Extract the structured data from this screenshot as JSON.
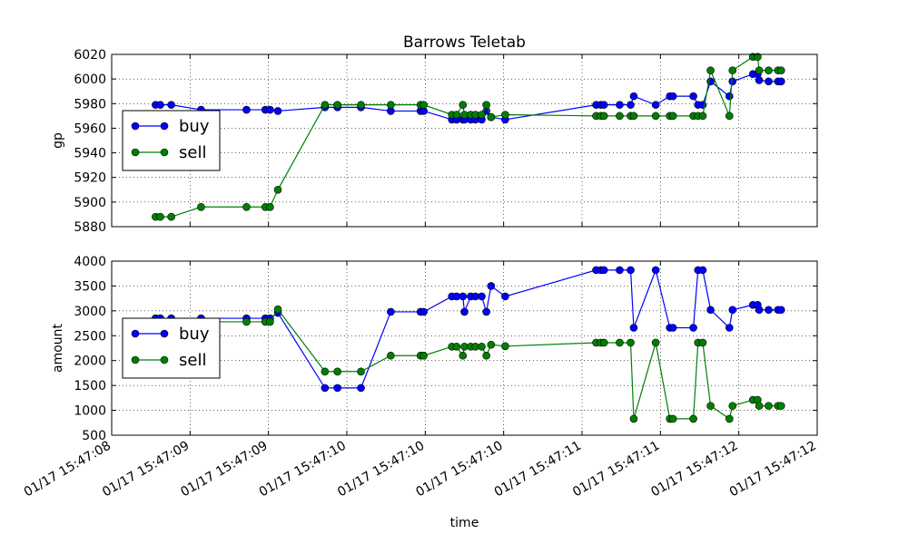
{
  "chart_data": [
    {
      "type": "line",
      "title": "Barrows Teletab",
      "ylabel": "gp",
      "x": [
        8.28,
        8.31,
        8.38,
        8.57,
        8.86,
        8.98,
        9.01,
        9.06,
        9.36,
        9.44,
        9.59,
        9.78,
        9.97,
        9.99,
        10.17,
        10.2,
        10.24,
        10.25,
        10.29,
        10.32,
        10.36,
        10.39,
        10.42,
        10.51,
        11.09,
        11.12,
        11.14,
        11.24,
        11.31,
        11.33,
        11.47,
        11.56,
        11.58,
        11.71,
        11.74,
        11.77,
        11.82,
        11.94,
        11.96,
        12.09,
        12.12,
        12.13,
        12.19,
        12.25,
        12.27
      ],
      "series": [
        {
          "name": "buy",
          "color": "#0000ff",
          "values": [
            5979,
            5979,
            5979,
            5975,
            5975,
            5975,
            5975,
            5974,
            5977,
            5977,
            5977,
            5974,
            5974,
            5974,
            5967,
            5967,
            5967,
            5967,
            5967,
            5967,
            5967,
            5974,
            5969,
            5967,
            5979,
            5979,
            5979,
            5979,
            5979,
            5986,
            5979,
            5986,
            5986,
            5986,
            5979,
            5979,
            5998,
            5986,
            5998,
            6004,
            6004,
            5999,
            5998,
            5998,
            5998
          ]
        },
        {
          "name": "sell",
          "color": "#008000",
          "values": [
            5888,
            5888,
            5888,
            5896,
            5896,
            5896,
            5896,
            5910,
            5979,
            5979,
            5979,
            5979,
            5979,
            5979,
            5971,
            5971,
            5979,
            5971,
            5971,
            5971,
            5971,
            5979,
            5969,
            5971,
            5970,
            5970,
            5970,
            5970,
            5970,
            5970,
            5970,
            5970,
            5970,
            5970,
            5970,
            5970,
            6007,
            5970,
            6007,
            6018,
            6018,
            6007,
            6007,
            6007,
            6007
          ]
        }
      ],
      "xlim": [
        8.0,
        12.5
      ],
      "xticks": [
        8.0,
        8.5,
        9.0,
        9.5,
        10.0,
        10.5,
        11.0,
        11.5,
        12.0,
        12.5
      ],
      "ylim": [
        5880,
        6020
      ],
      "yticks": [
        5880,
        5900,
        5920,
        5940,
        5960,
        5980,
        6000,
        6020
      ],
      "grid": true,
      "legend": "center left"
    },
    {
      "type": "line",
      "ylabel": "amount",
      "xlabel": "time",
      "x": [
        8.28,
        8.31,
        8.38,
        8.57,
        8.86,
        8.98,
        9.01,
        9.06,
        9.36,
        9.44,
        9.59,
        9.78,
        9.97,
        9.99,
        10.17,
        10.2,
        10.24,
        10.25,
        10.29,
        10.32,
        10.36,
        10.39,
        10.42,
        10.51,
        11.09,
        11.12,
        11.14,
        11.24,
        11.31,
        11.33,
        11.47,
        11.56,
        11.58,
        11.71,
        11.74,
        11.77,
        11.82,
        11.94,
        11.96,
        12.09,
        12.12,
        12.13,
        12.19,
        12.25,
        12.27
      ],
      "series": [
        {
          "name": "buy",
          "color": "#0000ff",
          "values": [
            2850,
            2850,
            2850,
            2850,
            2850,
            2850,
            2850,
            2960,
            1450,
            1450,
            1450,
            2980,
            2980,
            2980,
            3290,
            3290,
            3290,
            2980,
            3290,
            3290,
            3290,
            2980,
            3500,
            3290,
            3820,
            3820,
            3820,
            3820,
            3820,
            2660,
            3820,
            2660,
            2660,
            2660,
            3820,
            3820,
            3020,
            2660,
            3020,
            3120,
            3120,
            3020,
            3020,
            3020,
            3020
          ]
        },
        {
          "name": "sell",
          "color": "#008000",
          "values": [
            2780,
            2780,
            2780,
            2780,
            2780,
            2780,
            2780,
            3030,
            1780,
            1780,
            1780,
            2100,
            2100,
            2100,
            2280,
            2280,
            2100,
            2280,
            2280,
            2280,
            2280,
            2100,
            2320,
            2290,
            2360,
            2360,
            2360,
            2360,
            2360,
            830,
            2360,
            830,
            830,
            830,
            2360,
            2360,
            1090,
            830,
            1090,
            1210,
            1210,
            1090,
            1090,
            1090,
            1090
          ]
        }
      ],
      "xlim": [
        8.0,
        12.5
      ],
      "xticks": [
        {
          "value": 8.0,
          "label": "01/17 15:47:08"
        },
        {
          "value": 8.5,
          "label": "01/17 15:47:09"
        },
        {
          "value": 9.0,
          "label": "01/17 15:47:09"
        },
        {
          "value": 9.5,
          "label": "01/17 15:47:10"
        },
        {
          "value": 10.0,
          "label": "01/17 15:47:10"
        },
        {
          "value": 10.5,
          "label": "01/17 15:47:10"
        },
        {
          "value": 11.0,
          "label": "01/17 15:47:11"
        },
        {
          "value": 11.5,
          "label": "01/17 15:47:11"
        },
        {
          "value": 12.0,
          "label": "01/17 15:47:12"
        },
        {
          "value": 12.5,
          "label": "01/17 15:47:12"
        }
      ],
      "ylim": [
        500,
        4000
      ],
      "yticks": [
        500,
        1000,
        1500,
        2000,
        2500,
        3000,
        3500,
        4000
      ],
      "grid": true,
      "legend": "center left"
    }
  ]
}
